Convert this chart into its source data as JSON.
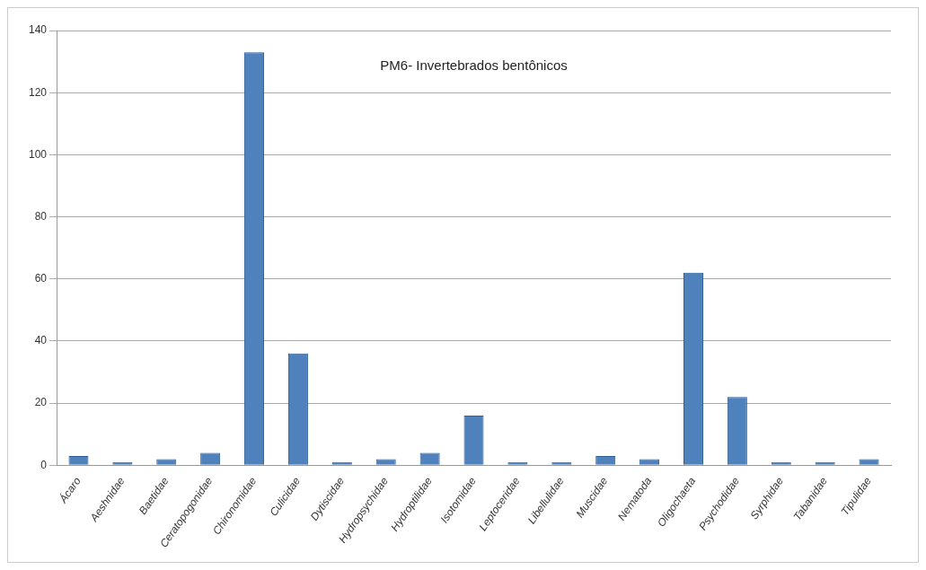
{
  "chart_data": {
    "type": "bar",
    "title": "PM6- Invertebrados bentônicos",
    "categories": [
      "Ácaro",
      "Aeshnidae",
      "Baetidae",
      "Ceratopogonidae",
      "Chironomidae",
      "Culicidae",
      "Dytiscidae",
      "Hydropsychidae",
      "Hydroptilidae",
      "Isotomidae",
      "Leptoceridae",
      "Libellulidae",
      "Muscidae",
      "Nematoda",
      "Oligochaeta",
      "Psychodidae",
      "Syrphidae",
      "Tabanidae",
      "Tipulidae"
    ],
    "values": [
      3,
      1,
      2,
      4,
      133,
      36,
      1,
      2,
      4,
      16,
      1,
      1,
      3,
      2,
      62,
      22,
      1,
      1,
      2
    ],
    "color": "#4f81bd",
    "ylim": [
      0,
      140
    ],
    "yticks": [
      0,
      20,
      40,
      60,
      80,
      100,
      120,
      140
    ],
    "grid": "y",
    "legend": false
  }
}
